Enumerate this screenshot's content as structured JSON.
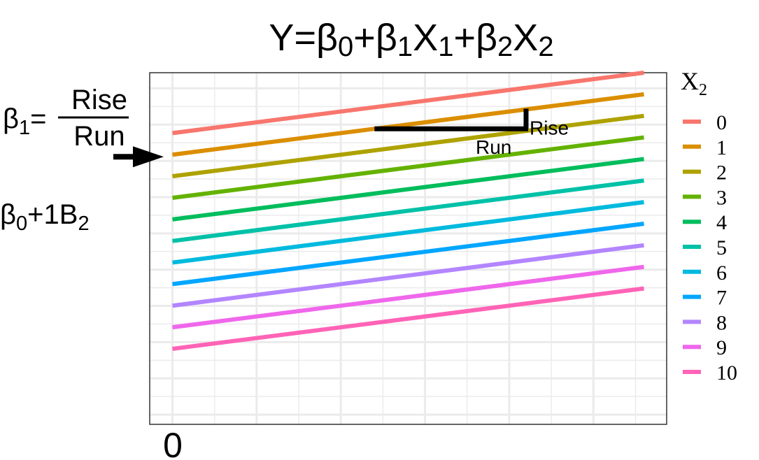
{
  "chart_data": {
    "type": "line",
    "title": {
      "lhs": "Y=",
      "terms": [
        {
          "base": "β",
          "sub": "0"
        },
        {
          "op": "+"
        },
        {
          "base": "β",
          "sub": "1"
        },
        {
          "base": "X",
          "sub": "1"
        },
        {
          "op": "+"
        },
        {
          "base": "β",
          "sub": "2"
        },
        {
          "base": "X",
          "sub": "2"
        }
      ]
    },
    "x_tick_label": "0",
    "legend": {
      "title_base": "X",
      "title_sub": "2",
      "placement": "right"
    },
    "grid": true,
    "x": [
      0,
      5.6
    ],
    "xlim": [
      -0.27,
      5.87
    ],
    "ylim": [
      -13.5,
      2.8
    ],
    "series": [
      {
        "name": "0",
        "color": "#F8766D",
        "values": [
          0,
          2.8
        ]
      },
      {
        "name": "1",
        "color": "#DB8E00",
        "values": [
          -1,
          1.8
        ]
      },
      {
        "name": "2",
        "color": "#AEA200",
        "values": [
          -2,
          0.8
        ]
      },
      {
        "name": "3",
        "color": "#64B200",
        "values": [
          -3,
          -0.2
        ]
      },
      {
        "name": "4",
        "color": "#00BD5C",
        "values": [
          -4,
          -1.2
        ]
      },
      {
        "name": "5",
        "color": "#00C1A7",
        "values": [
          -5,
          -2.2
        ]
      },
      {
        "name": "6",
        "color": "#00BADE",
        "values": [
          -6,
          -3.2
        ]
      },
      {
        "name": "7",
        "color": "#00A6FF",
        "values": [
          -7,
          -4.2
        ]
      },
      {
        "name": "8",
        "color": "#B385FF",
        "values": [
          -8,
          -5.2
        ]
      },
      {
        "name": "9",
        "color": "#EF67EB",
        "values": [
          -9,
          -6.2
        ]
      },
      {
        "name": "10",
        "color": "#FF63B6",
        "values": [
          -10,
          -7.2
        ]
      }
    ],
    "slope_triangle": {
      "x_start": 2.4,
      "x_end": 4.2,
      "line_value": -1,
      "rise_label": "Rise",
      "run_label": "Run"
    },
    "annotations": {
      "beta1": {
        "base": "β",
        "sub": "1",
        "eq": "=",
        "numerator": "Rise",
        "denominator": "Run"
      },
      "intercept": {
        "base": "β",
        "sub": "0",
        "rest": "+1B",
        "sub2": "2",
        "points_to_series": "1"
      }
    }
  }
}
